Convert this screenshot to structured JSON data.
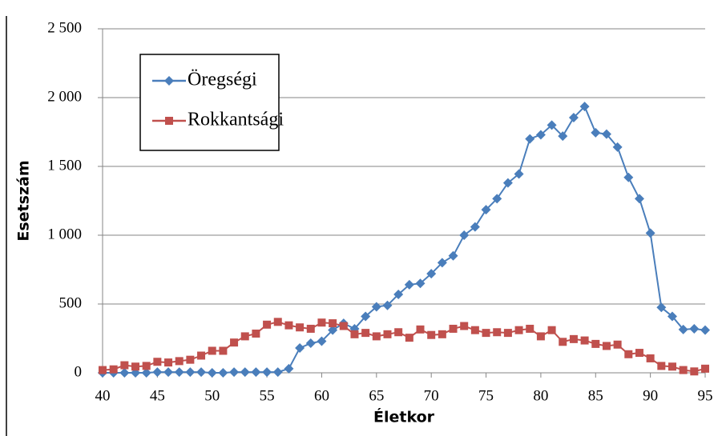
{
  "chart_data": {
    "type": "line",
    "x_label": "Életkor",
    "y_label": "Esetszám",
    "x": [
      40,
      41,
      42,
      43,
      44,
      45,
      46,
      47,
      48,
      49,
      50,
      51,
      52,
      53,
      54,
      55,
      56,
      57,
      58,
      59,
      60,
      61,
      62,
      63,
      64,
      65,
      66,
      67,
      68,
      69,
      70,
      71,
      72,
      73,
      74,
      75,
      76,
      77,
      78,
      79,
      80,
      81,
      82,
      83,
      84,
      85,
      86,
      87,
      88,
      89,
      90,
      91,
      92,
      93,
      94,
      95
    ],
    "series": [
      {
        "name": "Öregségi",
        "color": "#4a7ebb",
        "marker": "diamond",
        "values": [
          0,
          0,
          0,
          0,
          0,
          5,
          5,
          5,
          5,
          5,
          0,
          0,
          5,
          5,
          5,
          5,
          5,
          30,
          180,
          215,
          230,
          310,
          360,
          320,
          410,
          480,
          490,
          570,
          640,
          650,
          720,
          800,
          850,
          1000,
          1060,
          1185,
          1265,
          1380,
          1445,
          1700,
          1730,
          1800,
          1720,
          1855,
          1935,
          1745,
          1735,
          1640,
          1420,
          1265,
          1015,
          475,
          410,
          315,
          320,
          310
        ]
      },
      {
        "name": "Rokkantsági",
        "color": "#c0504d",
        "marker": "square",
        "values": [
          20,
          25,
          55,
          45,
          50,
          80,
          75,
          85,
          95,
          125,
          160,
          160,
          220,
          265,
          285,
          350,
          370,
          345,
          330,
          320,
          365,
          360,
          340,
          280,
          290,
          265,
          280,
          295,
          255,
          315,
          275,
          280,
          320,
          340,
          310,
          290,
          295,
          290,
          310,
          320,
          265,
          310,
          225,
          245,
          235,
          210,
          195,
          205,
          135,
          145,
          105,
          50,
          45,
          20,
          10,
          30
        ]
      }
    ],
    "xlim": [
      40,
      95
    ],
    "xticks": [
      40,
      45,
      50,
      55,
      60,
      65,
      70,
      75,
      80,
      85,
      90,
      95
    ],
    "ylim": [
      0,
      2500
    ],
    "yticks": [
      0,
      500,
      {
        "value": 1000,
        "label": "1 000"
      },
      {
        "value": 1500,
        "label": "1 500"
      },
      {
        "value": 2000,
        "label": "2 000"
      },
      {
        "value": 2500,
        "label": "2 500"
      }
    ],
    "grid": true,
    "legend": "upper left"
  }
}
